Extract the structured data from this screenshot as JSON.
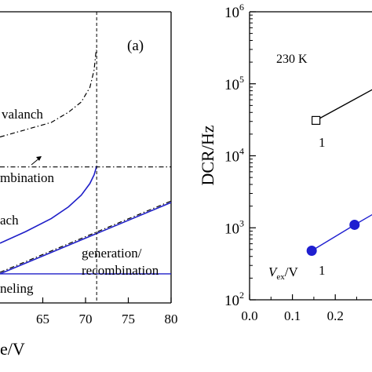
{
  "chart_data": [
    {
      "type": "line",
      "panel_label": "(a)",
      "xlabel": "e/V",
      "ylabel": "",
      "xlim": [
        60,
        80
      ],
      "x_tick_labels": [
        "65",
        "70",
        "75",
        "80"
      ],
      "x_ticks": [
        65,
        70,
        75,
        80
      ],
      "vline_x": 71.3,
      "annotations": [
        "valanch",
        "mbination",
        "ach",
        "generation/",
        "recombination",
        "neling"
      ],
      "series": [
        {
          "name": "",
          "style": "dashdot-black",
          "x": [
            60,
            66,
            68,
            69.5,
            70.5,
            71.0,
            71.25
          ],
          "y": [
            0.57,
            0.62,
            0.655,
            0.69,
            0.74,
            0.8,
            0.87
          ]
        },
        {
          "name": "",
          "style": "dashdot-black-flat",
          "x": [
            60,
            80
          ],
          "y": [
            0.467,
            0.467
          ]
        },
        {
          "name": "",
          "style": "solid-blue",
          "x": [
            60,
            63,
            66,
            68,
            69.5,
            70.5,
            71.0,
            71.3
          ],
          "y": [
            0.205,
            0.245,
            0.29,
            0.33,
            0.37,
            0.41,
            0.44,
            0.47
          ]
        },
        {
          "name": "",
          "style": "solid-blue",
          "x": [
            60,
            80
          ],
          "y": [
            0.1,
            0.345
          ]
        },
        {
          "name": "",
          "style": "dashdot-black-thin",
          "x": [
            60,
            80
          ],
          "y": [
            0.105,
            0.35
          ]
        },
        {
          "name": "",
          "style": "solid-blue-flat",
          "x": [
            60,
            80
          ],
          "y": [
            0.1,
            0.1
          ]
        }
      ]
    },
    {
      "type": "scatter",
      "title": "230 K",
      "xlabel": "",
      "ylabel": "DCR/Hz",
      "xlim": [
        0.0,
        0.3
      ],
      "ylim": [
        100,
        1000000
      ],
      "yscale": "log",
      "x_tick_labels": [
        "0.0",
        "0.1",
        "0.2"
      ],
      "x_ticks": [
        0.0,
        0.1,
        0.2
      ],
      "y_tick_labels": [
        {
          "base": "10",
          "exp": "2",
          "value": 100
        },
        {
          "base": "10",
          "exp": "3",
          "value": 1000
        },
        {
          "base": "10",
          "exp": "4",
          "value": 10000
        },
        {
          "base": "10",
          "exp": "5",
          "value": 100000
        },
        {
          "base": "10",
          "exp": "6",
          "value": 1000000
        }
      ],
      "series": [
        {
          "name": "",
          "marker": "open-square",
          "color": "#000000",
          "x": [
            0.155,
            0.3
          ],
          "y": [
            31000,
            92000
          ]
        },
        {
          "name": "",
          "marker": "filled-circle",
          "color": "#1f1fd0",
          "x": [
            0.145,
            0.245,
            0.3
          ],
          "y": [
            480,
            1100,
            1700
          ]
        }
      ],
      "point_labels": [
        "1",
        "1"
      ],
      "vex_label": {
        "italic": "V",
        "sub": "ex",
        "rest": "/V"
      }
    }
  ]
}
